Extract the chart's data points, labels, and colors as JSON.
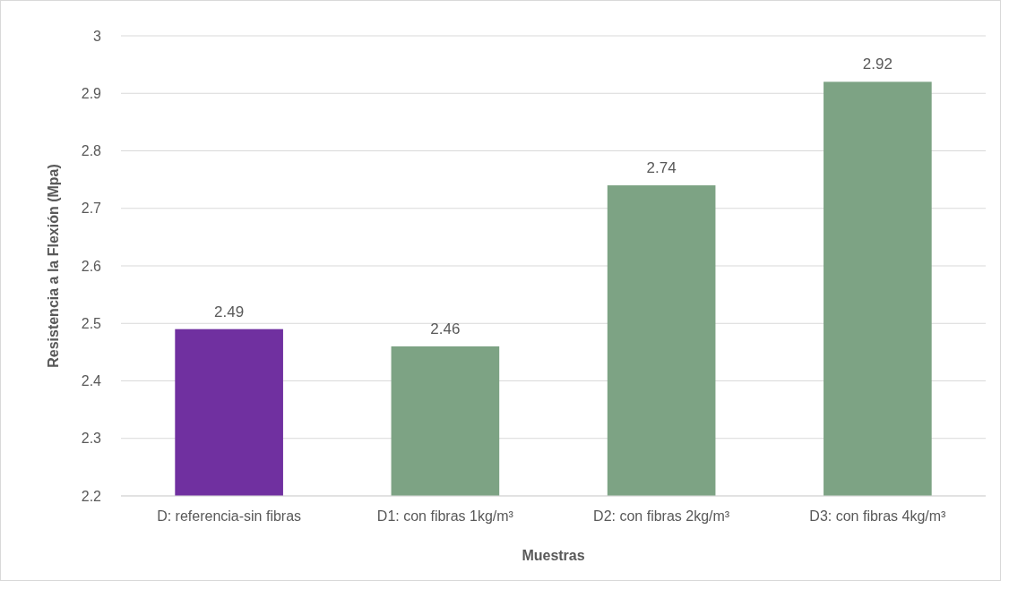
{
  "chart_data": {
    "type": "bar",
    "xlabel": "Muestras",
    "ylabel": "Resistencia a la Flexión (Mpa)",
    "categories": [
      "D: referencia-sin fibras",
      "D1: con fibras 1kg/m³",
      "D2: con fibras 2kg/m³",
      "D3: con fibras 4kg/m³"
    ],
    "values": [
      2.49,
      2.46,
      2.74,
      2.92
    ],
    "colors": [
      "#7030a0",
      "#7da384",
      "#7da384",
      "#7da384"
    ],
    "ylim": [
      2.2,
      3
    ],
    "yticks": [
      2.2,
      2.3,
      2.4,
      2.5,
      2.6,
      2.7,
      2.8,
      2.9,
      3
    ],
    "grid": "y",
    "data_labels": true
  }
}
